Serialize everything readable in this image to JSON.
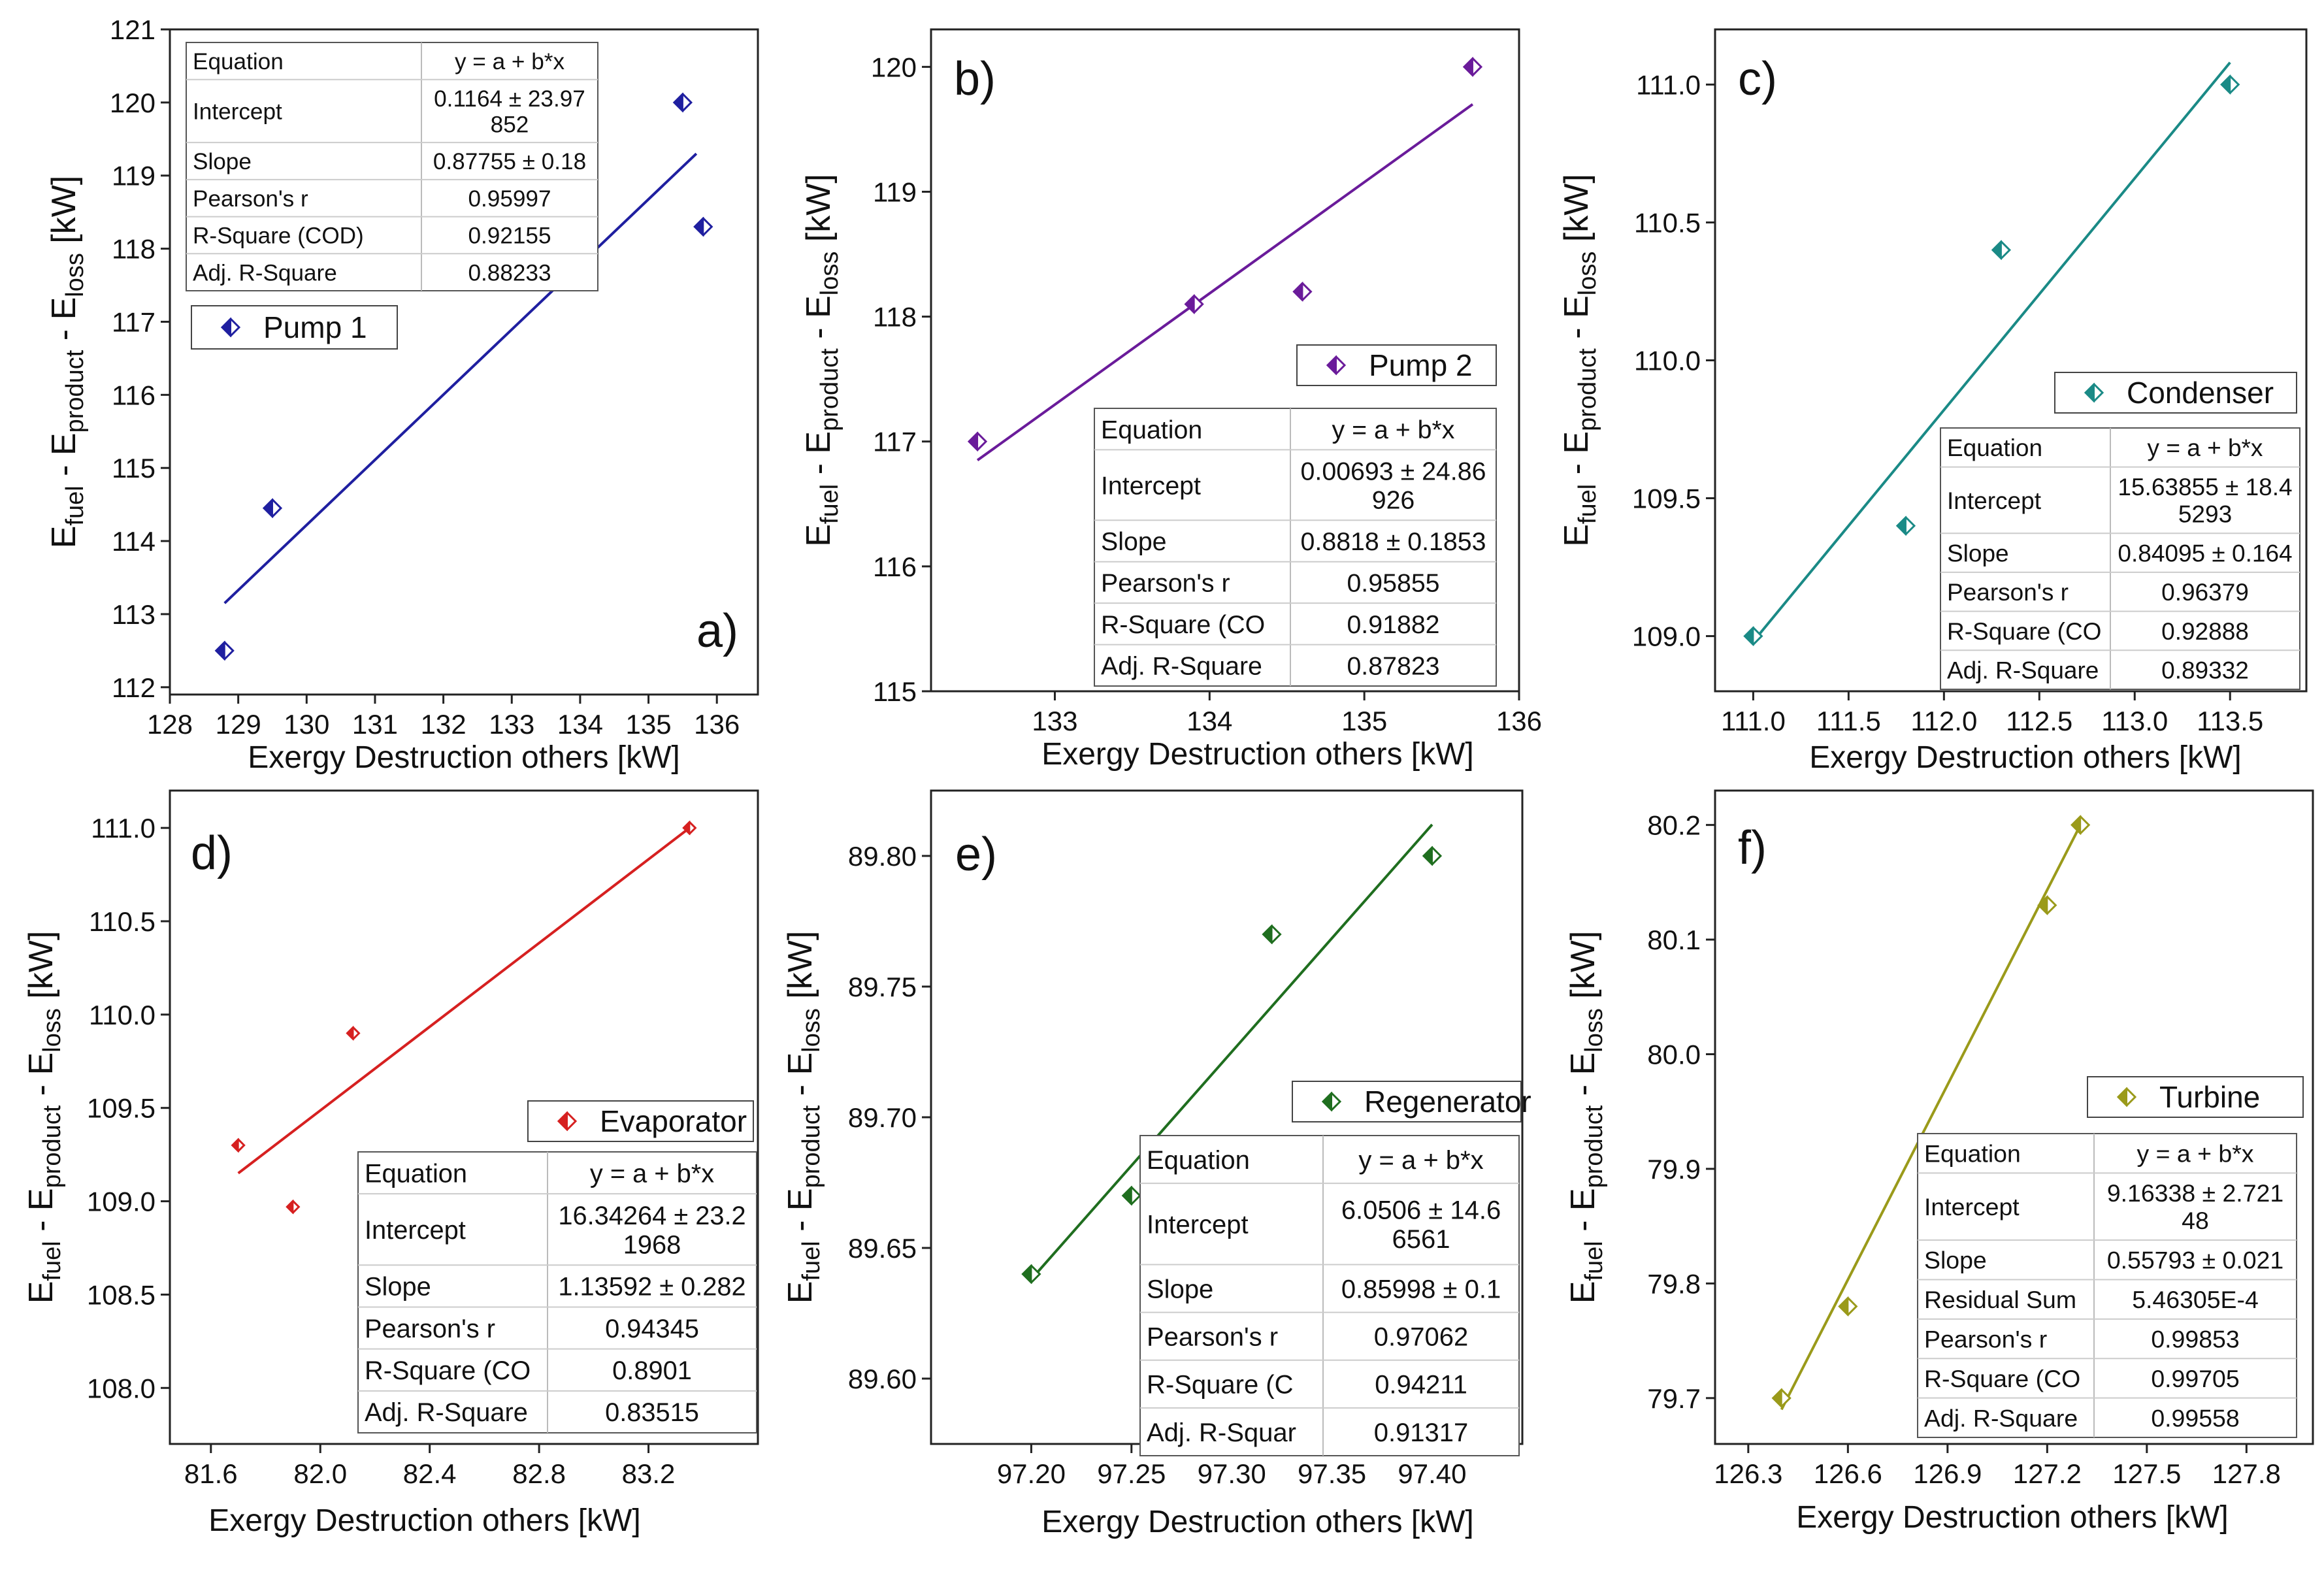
{
  "chart_data": [
    {
      "type": "scatter",
      "panel_label": "a)",
      "legend": "Pump 1",
      "color": "#1f1fa0",
      "xlabel": "Exergy Destruction others [kW]",
      "ylabel_parts": [
        "E",
        "fuel",
        " - E",
        "product",
        " - E",
        "loss",
        " [kW]"
      ],
      "xlim": [
        128,
        136.6
      ],
      "ylim": [
        111.9,
        121
      ],
      "xticks": [
        128,
        129,
        130,
        131,
        132,
        133,
        134,
        135,
        136
      ],
      "xtick_labels": [
        "128",
        "129",
        "130",
        "131",
        "132",
        "133",
        "134",
        "135",
        "136"
      ],
      "yticks": [
        112,
        113,
        114,
        115,
        116,
        117,
        118,
        119,
        120,
        121
      ],
      "ytick_labels": [
        "112",
        "113",
        "114",
        "115",
        "116",
        "117",
        "118",
        "119",
        "120",
        "121"
      ],
      "points": [
        [
          128.8,
          112.5
        ],
        [
          129.5,
          114.45
        ],
        [
          135.5,
          120
        ],
        [
          135.8,
          118.3
        ]
      ],
      "fit": [
        [
          128.8,
          113.15
        ],
        [
          135.7,
          119.3
        ]
      ],
      "table_rows": [
        [
          "Equation",
          "y = a + b*x"
        ],
        [
          "Intercept",
          "0.1164 ± 23.97|852"
        ],
        [
          "Slope",
          "0.87755 ± 0.18"
        ],
        [
          "Pearson's r",
          "0.95997"
        ],
        [
          "R-Square (COD)",
          "0.92155"
        ],
        [
          "Adj. R-Square",
          "0.88233"
        ]
      ]
    },
    {
      "type": "scatter",
      "panel_label": "b)",
      "legend": "Pump 2",
      "color": "#6a1b9a",
      "xlabel": "Exergy Destruction others [kW]",
      "ylabel_parts": [
        "E",
        "fuel",
        " - E",
        "product",
        " - E",
        "loss",
        " [kW]"
      ],
      "xlim": [
        132.2,
        136
      ],
      "ylim": [
        115,
        120.3
      ],
      "xticks": [
        133,
        134,
        135,
        136
      ],
      "xtick_labels": [
        "133",
        "134",
        "135",
        "136"
      ],
      "yticks": [
        115,
        116,
        117,
        118,
        119,
        120
      ],
      "ytick_labels": [
        "115",
        "116",
        "117",
        "118",
        "119",
        "120"
      ],
      "points": [
        [
          132.5,
          117
        ],
        [
          133.9,
          118.1
        ],
        [
          134.6,
          118.2
        ],
        [
          135.7,
          120
        ]
      ],
      "fit": [
        [
          132.5,
          116.85
        ],
        [
          135.7,
          119.7
        ]
      ],
      "table_rows": [
        [
          "Equation",
          "y = a + b*x"
        ],
        [
          "Intercept",
          "0.00693 ± 24.86|926"
        ],
        [
          "Slope",
          "0.8818 ± 0.1853"
        ],
        [
          "Pearson's r",
          "0.95855"
        ],
        [
          "R-Square (CO",
          "0.91882"
        ],
        [
          "Adj. R-Square",
          "0.87823"
        ]
      ]
    },
    {
      "type": "scatter",
      "panel_label": "c)",
      "legend": "Condenser",
      "color": "#1a8a86",
      "xlabel": "Exergy Destruction others [kW]",
      "ylabel_parts": [
        "E",
        "fuel",
        " - E",
        "product",
        " - E",
        "loss",
        " [kW]"
      ],
      "xlim": [
        110.8,
        113.9
      ],
      "ylim": [
        108.8,
        111.2
      ],
      "xticks": [
        111.0,
        111.5,
        112.0,
        112.5,
        113.0,
        113.5
      ],
      "xtick_labels": [
        "111.0",
        "111.5",
        "112.0",
        "112.5",
        "113.0",
        "113.5"
      ],
      "yticks": [
        109.0,
        109.5,
        110.0,
        110.5,
        111.0
      ],
      "ytick_labels": [
        "109.0",
        "109.5",
        "110.0",
        "110.5",
        "111.0"
      ],
      "points": [
        [
          111.0,
          109.0
        ],
        [
          111.8,
          109.4
        ],
        [
          112.3,
          110.4
        ],
        [
          113.5,
          111.0
        ]
      ],
      "fit": [
        [
          111.0,
          108.98
        ],
        [
          113.5,
          111.08
        ]
      ],
      "table_rows": [
        [
          "Equation",
          "y = a + b*x"
        ],
        [
          "Intercept",
          "15.63855 ± 18.4|5293"
        ],
        [
          "Slope",
          "0.84095 ± 0.164"
        ],
        [
          "Pearson's r",
          "0.96379"
        ],
        [
          "R-Square (CO",
          "0.92888"
        ],
        [
          "Adj. R-Square",
          "0.89332"
        ]
      ]
    },
    {
      "type": "scatter",
      "panel_label": "d)",
      "legend": "Evaporator",
      "color": "#d62020",
      "xlabel": "Exergy Destruction others [kW]",
      "ylabel_parts": [
        "E",
        "fuel",
        " - E",
        "product",
        " - E",
        "loss",
        " [kW]"
      ],
      "xlim": [
        81.45,
        83.6
      ],
      "ylim": [
        107.7,
        111.2
      ],
      "xticks": [
        81.6,
        82.0,
        82.4,
        82.8,
        83.2
      ],
      "xtick_labels": [
        "81.6",
        "82.0",
        "82.4",
        "82.8",
        "83.2"
      ],
      "yticks": [
        108.0,
        108.5,
        109.0,
        109.5,
        110.0,
        110.5,
        111.0
      ],
      "ytick_labels": [
        "108.0",
        "108.5",
        "109.0",
        "109.5",
        "110.0",
        "110.5",
        "111.0"
      ],
      "points": [
        [
          81.7,
          109.3
        ],
        [
          81.9,
          108.97
        ],
        [
          82.12,
          109.9
        ],
        [
          83.35,
          111.0
        ]
      ],
      "fit": [
        [
          81.7,
          109.15
        ],
        [
          83.35,
          111.0
        ]
      ],
      "table_rows": [
        [
          "Equation",
          "y = a + b*x"
        ],
        [
          "Intercept",
          "16.34264 ± 23.2|1968"
        ],
        [
          "Slope",
          "1.13592 ± 0.282"
        ],
        [
          "Pearson's r",
          "0.94345"
        ],
        [
          "R-Square (CO",
          "0.8901"
        ],
        [
          "Adj. R-Square",
          "0.83515"
        ]
      ]
    },
    {
      "type": "scatter",
      "panel_label": "e)",
      "legend": "Regenerator",
      "color": "#1f6e1f",
      "xlabel": "Exergy Destruction others [kW]",
      "ylabel_parts": [
        "E",
        "fuel",
        " - E",
        "product",
        " - E",
        "loss",
        " [kW]"
      ],
      "xlim": [
        97.15,
        97.445
      ],
      "ylim": [
        89.575,
        89.825
      ],
      "xticks": [
        97.2,
        97.25,
        97.3,
        97.35,
        97.4
      ],
      "xtick_labels": [
        "97.20",
        "97.25",
        "97.30",
        "97.35",
        "97.40"
      ],
      "yticks": [
        89.6,
        89.65,
        89.7,
        89.75,
        89.8
      ],
      "ytick_labels": [
        "89.60",
        "89.65",
        "89.70",
        "89.75",
        "89.80"
      ],
      "points": [
        [
          97.2,
          89.64
        ],
        [
          97.25,
          89.67
        ],
        [
          97.32,
          89.77
        ],
        [
          97.4,
          89.8
        ]
      ],
      "fit": [
        [
          97.2,
          89.638
        ],
        [
          97.4,
          89.812
        ]
      ],
      "table_rows": [
        [
          "Equation",
          "y = a + b*x"
        ],
        [
          "Intercept",
          "6.0506 ± 14.6|6561"
        ],
        [
          "Slope",
          "0.85998 ± 0.1"
        ],
        [
          "Pearson's r",
          "0.97062"
        ],
        [
          "R-Square (C",
          "0.94211"
        ],
        [
          "Adj. R-Squar",
          "0.91317"
        ]
      ]
    },
    {
      "type": "scatter",
      "panel_label": "f)",
      "legend": "Turbine",
      "color": "#9a9a1a",
      "xlabel": "Exergy Destruction others [kW]",
      "ylabel_parts": [
        "E",
        "fuel",
        " - E",
        "product",
        " - E",
        "loss",
        " [kW]"
      ],
      "xlim": [
        126.2,
        128
      ],
      "ylim": [
        79.66,
        80.23
      ],
      "xticks": [
        126.3,
        126.6,
        126.9,
        127.2,
        127.5,
        127.8
      ],
      "xtick_labels": [
        "126.3",
        "126.6",
        "126.9",
        "127.2",
        "127.5",
        "127.8"
      ],
      "yticks": [
        79.7,
        79.8,
        79.9,
        80.0,
        80.1,
        80.2
      ],
      "ytick_labels": [
        "79.7",
        "79.8",
        "79.9",
        "80.0",
        "80.1",
        "80.2"
      ],
      "points": [
        [
          126.4,
          79.7
        ],
        [
          126.6,
          79.78
        ],
        [
          127.2,
          80.13
        ],
        [
          127.3,
          80.2
        ]
      ],
      "fit": [
        [
          126.4,
          79.69
        ],
        [
          127.3,
          80.2
        ]
      ],
      "table_rows": [
        [
          "Equation",
          "y = a + b*x"
        ],
        [
          "Intercept",
          "9.16338 ± 2.721|48"
        ],
        [
          "Slope",
          "0.55793 ± 0.021"
        ],
        [
          "Residual Sum",
          "5.46305E-4"
        ],
        [
          "Pearson's r",
          "0.99853"
        ],
        [
          "R-Square (CO",
          "0.99705"
        ],
        [
          "Adj. R-Square",
          "0.99558"
        ]
      ]
    }
  ]
}
